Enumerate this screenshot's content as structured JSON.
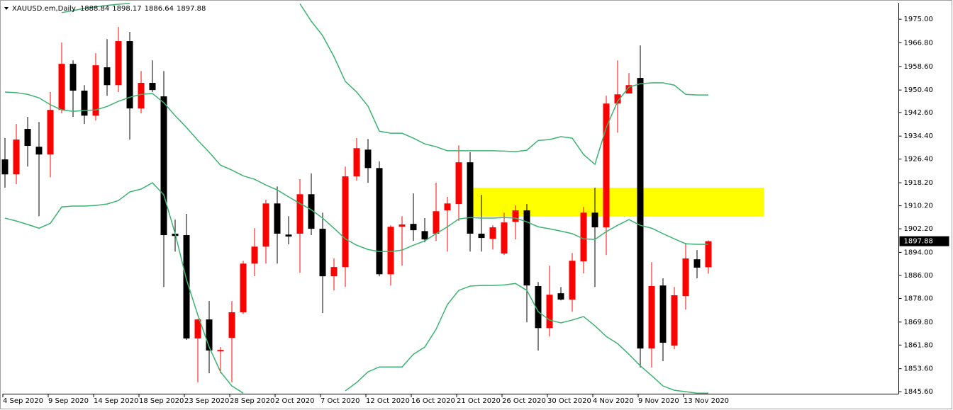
{
  "chart_data": {
    "type": "candlestick",
    "title": "XAUUSD.em,Daily",
    "up_color": "#ff0000",
    "down_color": "#000000",
    "categories": [
      "4 Sep 2020",
      null,
      null,
      null,
      "9 Sep 2020",
      null,
      null,
      null,
      "14 Sep 2020",
      null,
      null,
      null,
      "18 Sep 2020",
      null,
      null,
      null,
      "23 Sep 2020",
      null,
      null,
      null,
      "28 Sep 2020",
      null,
      null,
      null,
      "2 Oct 2020",
      null,
      null,
      null,
      "7 Oct 2020",
      null,
      null,
      null,
      "12 Oct 2020",
      null,
      null,
      null,
      "16 Oct 2020",
      null,
      null,
      null,
      "21 Oct 2020",
      null,
      null,
      null,
      "26 Oct 2020",
      null,
      null,
      null,
      "30 Oct 2020",
      null,
      null,
      null,
      "4 Nov 2020",
      null,
      null,
      null,
      "9 Nov 2020",
      null,
      null,
      null,
      "13 Nov 2020",
      null,
      null
    ],
    "ohlc": [
      [
        1926.3,
        1933.7,
        1916.5,
        1921.1
      ],
      [
        1921.1,
        1938.6,
        1917.7,
        1933.2
      ],
      [
        1936.9,
        1941.1,
        1923.8,
        1931.0
      ],
      [
        1930.7,
        1939.3,
        1906.6,
        1928.0
      ],
      [
        1928.0,
        1949.7,
        1920.1,
        1943.5
      ],
      [
        1943.5,
        1966.9,
        1942.3,
        1959.5
      ],
      [
        1959.5,
        1960.7,
        1941.1,
        1950.2
      ],
      [
        1950.2,
        1952.1,
        1938.6,
        1941.5
      ],
      [
        1941.5,
        1963.2,
        1939.8,
        1959.0
      ],
      [
        1958.3,
        1968.1,
        1948.4,
        1952.1
      ],
      [
        1952.1,
        1972.3,
        1949.7,
        1967.4
      ],
      [
        1967.4,
        1970.6,
        1933.2,
        1944.0
      ],
      [
        1944.0,
        1957.0,
        1942.3,
        1952.9
      ],
      [
        1952.9,
        1960.7,
        1949.7,
        1950.4
      ],
      [
        1948.2,
        1957.0,
        1882.0,
        1900.0
      ],
      [
        1900.5,
        1905.4,
        1894.3,
        1899.7
      ],
      [
        1900.0,
        1907.4,
        1863.6,
        1864.1
      ],
      [
        1864.1,
        1870.9,
        1848.8,
        1870.7
      ],
      [
        1870.7,
        1877.1,
        1852.0,
        1859.9
      ],
      [
        1859.6,
        1861.1,
        1852.0,
        1860.1
      ],
      [
        1864.3,
        1877.1,
        1848.8,
        1873.2
      ],
      [
        1873.2,
        1891.1,
        1872.7,
        1890.1
      ],
      [
        1890.1,
        1902.4,
        1885.7,
        1896.0
      ],
      [
        1896.0,
        1912.3,
        1890.1,
        1911.0
      ],
      [
        1911.0,
        1916.9,
        1890.1,
        1900.5
      ],
      [
        1900.2,
        1906.6,
        1896.8,
        1899.5
      ],
      [
        1900.5,
        1919.4,
        1886.9,
        1914.2
      ],
      [
        1914.2,
        1921.4,
        1900.0,
        1902.2
      ],
      [
        1902.2,
        1907.8,
        1872.9,
        1885.7
      ],
      [
        1885.7,
        1891.9,
        1880.8,
        1888.9
      ],
      [
        1888.9,
        1923.8,
        1882.0,
        1920.4
      ],
      [
        1920.4,
        1933.7,
        1918.9,
        1930.2
      ],
      [
        1929.7,
        1933.4,
        1918.2,
        1923.3
      ],
      [
        1923.3,
        1925.6,
        1885.7,
        1886.4
      ],
      [
        1886.4,
        1903.4,
        1882.5,
        1902.9
      ],
      [
        1902.9,
        1906.6,
        1889.4,
        1903.7
      ],
      [
        1903.9,
        1914.5,
        1898.0,
        1901.7
      ],
      [
        1901.4,
        1905.9,
        1897.5,
        1898.5
      ],
      [
        1900.5,
        1918.2,
        1898.0,
        1908.3
      ],
      [
        1908.6,
        1913.3,
        1894.3,
        1911.0
      ],
      [
        1910.8,
        1931.2,
        1904.9,
        1925.3
      ],
      [
        1925.3,
        1928.8,
        1894.3,
        1900.5
      ],
      [
        1900.5,
        1914.0,
        1894.3,
        1899.0
      ],
      [
        1898.7,
        1903.4,
        1895.0,
        1902.7
      ],
      [
        1893.6,
        1907.8,
        1893.1,
        1904.4
      ],
      [
        1904.6,
        1910.3,
        1898.5,
        1908.6
      ],
      [
        1908.6,
        1910.8,
        1869.7,
        1882.5
      ],
      [
        1882.3,
        1883.7,
        1859.9,
        1867.7
      ],
      [
        1867.7,
        1889.4,
        1864.8,
        1879.3
      ],
      [
        1879.8,
        1882.0,
        1877.3,
        1877.6
      ],
      [
        1877.6,
        1893.8,
        1873.4,
        1891.1
      ],
      [
        1890.9,
        1909.8,
        1886.7,
        1907.8
      ],
      [
        1907.8,
        1916.5,
        1882.0,
        1902.7
      ],
      [
        1902.7,
        1948.4,
        1893.1,
        1945.7
      ],
      [
        1945.7,
        1960.7,
        1935.6,
        1948.9
      ],
      [
        1949.2,
        1956.3,
        1949.2,
        1952.1
      ],
      [
        1954.6,
        1965.9,
        1854.0,
        1860.6
      ],
      [
        1860.6,
        1890.6,
        1854.0,
        1882.3
      ],
      [
        1882.5,
        1885.0,
        1856.2,
        1862.6
      ],
      [
        1861.6,
        1882.0,
        1860.4,
        1879.1
      ],
      [
        1878.8,
        1897.3,
        1874.1,
        1891.9
      ],
      [
        1891.6,
        1894.8,
        1885.0,
        1888.7
      ],
      [
        1888.84,
        1898.17,
        1886.64,
        1897.88
      ]
    ],
    "bands": [
      {
        "color": "#3cb371",
        "values": [
          null,
          null,
          null,
          null,
          null,
          1977.3,
          1978.0,
          1978.8,
          1979.3,
          1979.8,
          1980.2,
          1980.5,
          null,
          null,
          null,
          null,
          null,
          null,
          null,
          null,
          null,
          null,
          null,
          null,
          null,
          null,
          1980.4,
          1974.3,
          1969.3,
          1962.0,
          1953.4,
          1949.7,
          1944.8,
          1936.1,
          1935.4,
          1935.4,
          1933.7,
          1931.7,
          1930.7,
          1929.3,
          1929.3,
          1929.3,
          1929.3,
          1929.3,
          1929.2,
          1929.0,
          1929.5,
          1932.9,
          1933.2,
          1934.2,
          1933.7,
          1928.0,
          1924.6,
          1937.4,
          1946.5,
          1951.4,
          1952.6,
          1952.9,
          1952.9,
          1952.1,
          1948.9,
          1948.7,
          1948.7
        ]
      },
      {
        "color": "#3cb371",
        "values": [
          1949.7,
          1949.5,
          1948.9,
          1947.7,
          1945.3,
          1943.5,
          1943.0,
          1943.3,
          1943.5,
          1944.7,
          1946.5,
          1947.9,
          1948.9,
          1949.2,
          1946.0,
          1941.5,
          1937.4,
          1932.9,
          1928.8,
          1924.3,
          1922.6,
          1920.6,
          1919.4,
          1917.4,
          1915.7,
          1913.3,
          1911.0,
          1908.8,
          1905.9,
          1902.4,
          1898.7,
          1896.5,
          1895.0,
          1894.3,
          1894.3,
          1894.8,
          1896.5,
          1898.0,
          1900.5,
          1902.9,
          1905.6,
          1906.1,
          1905.9,
          1905.9,
          1906.1,
          1905.9,
          1904.6,
          1902.9,
          1902.2,
          1901.4,
          1900.5,
          1898.7,
          1898.5,
          1901.2,
          1903.4,
          1905.4,
          1903.4,
          1902.4,
          1900.5,
          1898.7,
          1897.0,
          1896.8,
          1896.8
        ]
      },
      {
        "color": "#3cb371",
        "values": [
          1905.9,
          1904.9,
          1903.7,
          1902.4,
          1904.1,
          1909.8,
          1910.1,
          1910.1,
          1910.3,
          1910.8,
          1912.0,
          1915.0,
          1916.0,
          1918.2,
          1914.0,
          1900.5,
          1884.5,
          1872.2,
          1861.1,
          1852.5,
          1847.6,
          1845.1,
          null,
          null,
          null,
          null,
          null,
          null,
          null,
          null,
          1845.9,
          1848.8,
          1852.5,
          1854.2,
          1854.2,
          1854.2,
          1858.6,
          1861.1,
          1867.3,
          1875.9,
          1880.8,
          1882.3,
          1882.5,
          1882.5,
          1882.7,
          1883.2,
          1880.8,
          1873.4,
          1870.5,
          1869.5,
          1870.5,
          1871.7,
          1868.5,
          1864.8,
          1862.3,
          1858.6,
          1854.6,
          1851.2,
          1847.6,
          1846.1,
          1845.6,
          1845.1,
          1845.1
        ]
      }
    ],
    "zone": {
      "color": "#ffff00",
      "ylim": [
        1906.4,
        1916.5
      ],
      "xrange": [
        41.25,
        66.9
      ]
    },
    "ylim": [
      1844.9,
      1980.7
    ],
    "yticks": [
      {
        "value": 1975.0,
        "label": "1975.00"
      },
      {
        "value": 1966.8,
        "label": "1966.80"
      },
      {
        "value": 1958.6,
        "label": "1958.60"
      },
      {
        "value": 1950.4,
        "label": "1950.40"
      },
      {
        "value": 1942.6,
        "label": "1942.60"
      },
      {
        "value": 1934.4,
        "label": "1934.40"
      },
      {
        "value": 1926.4,
        "label": "1926.40"
      },
      {
        "value": 1918.2,
        "label": "1918.20"
      },
      {
        "value": 1910.2,
        "label": "1910.20"
      },
      {
        "value": 1902.2,
        "label": "1902.20"
      },
      {
        "value": 1894.0,
        "label": "1894.00"
      },
      {
        "value": 1886.0,
        "label": "1886.00"
      },
      {
        "value": 1878.0,
        "label": "1878.00"
      },
      {
        "value": 1869.8,
        "label": "1869.80"
      },
      {
        "value": 1861.8,
        "label": "1861.80"
      },
      {
        "value": 1853.6,
        "label": "1853.60"
      },
      {
        "value": 1845.6,
        "label": "1845.60"
      }
    ],
    "grid": false
  }
}
